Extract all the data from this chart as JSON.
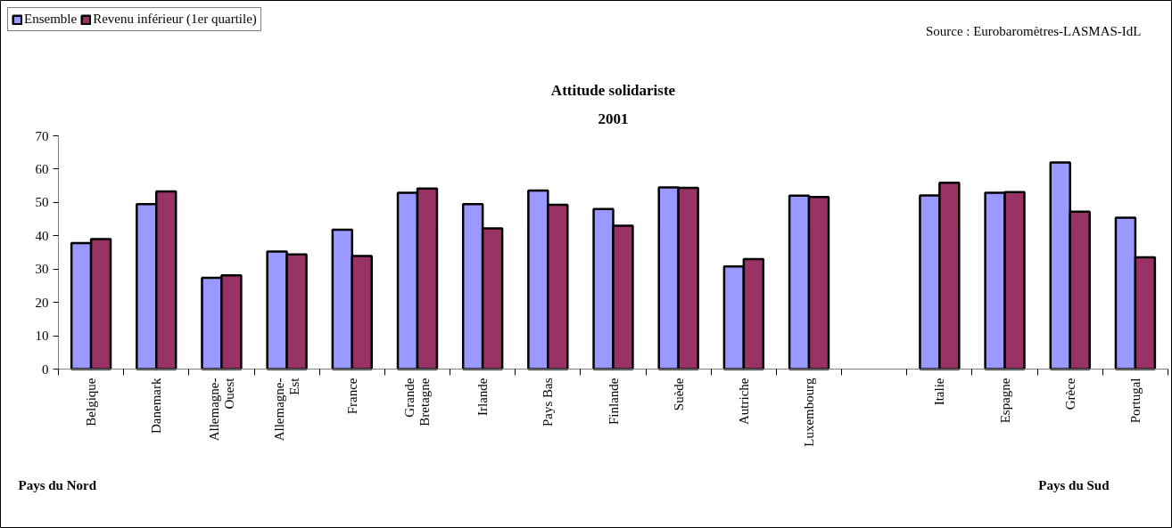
{
  "chart_data": {
    "type": "bar",
    "title": "Attitude solidariste",
    "subtitle": "2001",
    "categories": [
      "Belgique",
      "Danemark",
      "Allemagne-Ouest",
      "Allemagne-Est",
      "France",
      "Grande Bretagne",
      "Irlande",
      "Pays Bas",
      "Finlande",
      "Suède",
      "Autriche",
      "Luxembourg",
      null,
      "Italie",
      "Espagne",
      "Grèce",
      "Portugal"
    ],
    "series": [
      {
        "name": "Ensemble",
        "color": "#9999ff",
        "values": [
          37.8,
          49.5,
          27.4,
          35.3,
          41.8,
          52.9,
          49.5,
          53.6,
          48,
          54.5,
          30.8,
          52,
          null,
          52.1,
          52.9,
          62,
          45.4
        ]
      },
      {
        "name": "Revenu inférieur (1er quartile)",
        "color": "#993366",
        "values": [
          39,
          53.3,
          28.1,
          34.4,
          33.9,
          54.2,
          42.2,
          49.3,
          43,
          54.4,
          33,
          51.6,
          null,
          55.9,
          53.1,
          47.2,
          33.5
        ]
      }
    ],
    "ylim": [
      0,
      70
    ],
    "yticks": [
      0,
      10,
      20,
      30,
      40,
      50,
      60,
      70
    ],
    "grid": false,
    "legend": "top left",
    "annotations": [
      "Source : Eurobaromètres-LASMAS-IdL",
      "Pays du Nord",
      "Pays du Sud"
    ]
  }
}
